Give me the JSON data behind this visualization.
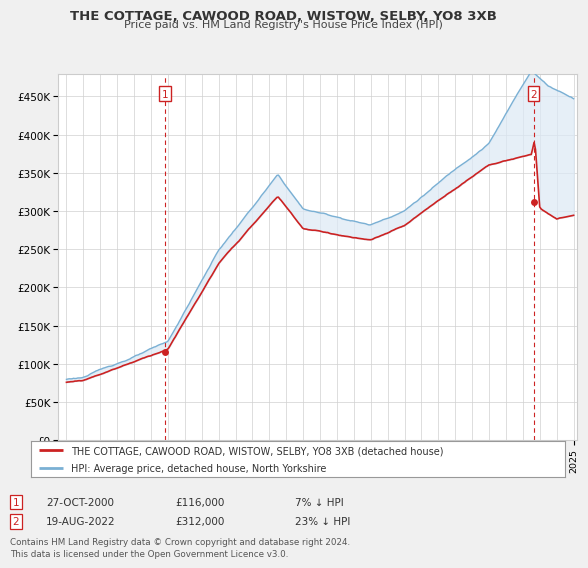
{
  "title": "THE COTTAGE, CAWOOD ROAD, WISTOW, SELBY, YO8 3XB",
  "subtitle": "Price paid vs. HM Land Registry's House Price Index (HPI)",
  "ylabel_ticks": [
    "£0",
    "£50K",
    "£100K",
    "£150K",
    "£200K",
    "£250K",
    "£300K",
    "£350K",
    "£400K",
    "£450K"
  ],
  "ytick_values": [
    0,
    50000,
    100000,
    150000,
    200000,
    250000,
    300000,
    350000,
    400000,
    450000
  ],
  "xlim": [
    1994.5,
    2025.2
  ],
  "ylim": [
    0,
    480000
  ],
  "bg_color": "#f0f0f0",
  "plot_bg_color": "#ffffff",
  "hpi_color": "#7ab0d4",
  "hpi_fill_color": "#dce9f5",
  "price_color": "#cc2222",
  "sale1_x": 2000.82,
  "sale1_y": 116000,
  "sale2_x": 2022.63,
  "sale2_y": 312000,
  "legend_text1": "THE COTTAGE, CAWOOD ROAD, WISTOW, SELBY, YO8 3XB (detached house)",
  "legend_text2": "HPI: Average price, detached house, North Yorkshire",
  "note1_num": "1",
  "note1_date": "27-OCT-2000",
  "note1_price": "£116,000",
  "note1_hpi": "7% ↓ HPI",
  "note2_num": "2",
  "note2_date": "19-AUG-2022",
  "note2_price": "£312,000",
  "note2_hpi": "23% ↓ HPI",
  "footer": "Contains HM Land Registry data © Crown copyright and database right 2024.\nThis data is licensed under the Open Government Licence v3.0."
}
